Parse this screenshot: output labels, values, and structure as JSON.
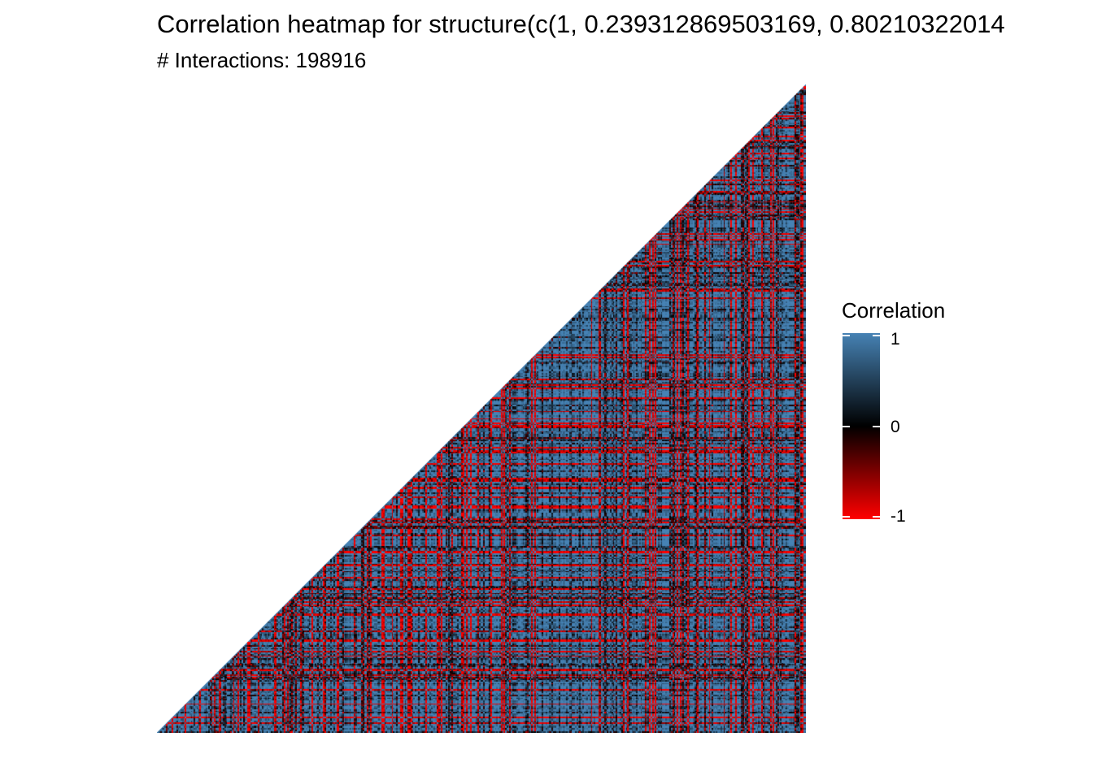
{
  "chart_data": {
    "type": "heatmap",
    "title": "Correlation heatmap for structure(c(1, 0.239312869503169, 0.80210322014",
    "subtitle": "# Interactions: 198916",
    "shape": "lower-triangle",
    "n_variables": 446,
    "legend": {
      "title": "Correlation",
      "placement": "right",
      "ticks": [
        {
          "label": "1",
          "value": 1
        },
        {
          "label": "0",
          "value": 0
        },
        {
          "label": "-1",
          "value": -1
        }
      ],
      "range": [
        -1,
        1
      ]
    },
    "colors": {
      "high": "#4682B4",
      "mid": "#000000",
      "low": "#FF0000"
    }
  }
}
